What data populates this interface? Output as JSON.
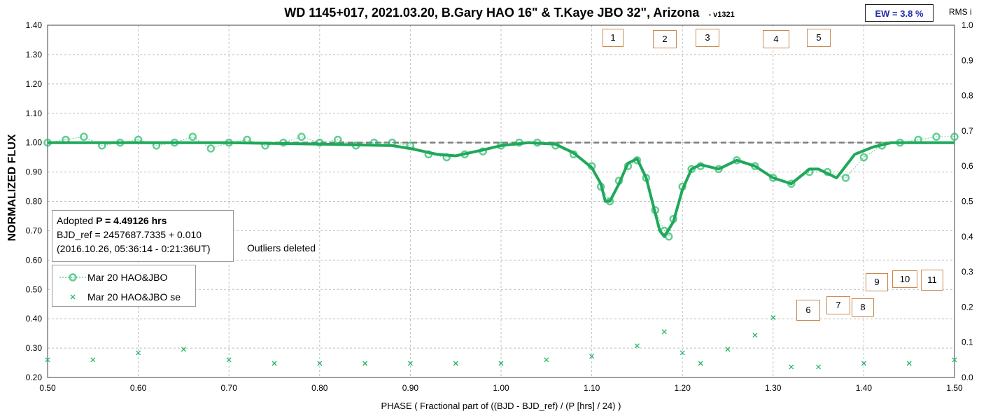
{
  "title": "WD 1145+017, 2021.03.20, B.Gary HAO 16\" & T.Kaye JBO 32\", Arizona",
  "version": "- v1321",
  "ew_label": "EW = 3.8 %",
  "rms_label": "RMS i",
  "info": {
    "line1_prefix": "Adopted ",
    "line1_bold": "P = 4.49126 hrs",
    "line2": "BJD_ref = 2457687.7335 + 0.010",
    "line3": "(2016.10.26, 05:36:14 - 0:21:36UT)"
  },
  "outliers_note": "Outliers deleted",
  "legend": [
    {
      "label": "Mar 20 HAO&JBO",
      "marker": "circle"
    },
    {
      "label": "Mar 20 HAO&JBO se",
      "marker": "x"
    }
  ],
  "markers": [
    "1",
    "2",
    "3",
    "4",
    "5",
    "6",
    "7",
    "8",
    "9",
    "10",
    "11"
  ],
  "colors": {
    "series": "#22b866",
    "fit": "#1fa85a",
    "reference": "#7f7f7f",
    "grid": "#bfbfbf",
    "ew_text": "#1f2db0",
    "marker_border": "#c98a50"
  },
  "chart_data": {
    "type": "scatter",
    "xlabel": "PHASE ( Fractional part of ((BJD - BJD_ref) / (P [hrs] / 24) )",
    "ylabel": "NORMALIZED FLUX",
    "y2label": "RMS i",
    "xlim": [
      0.5,
      1.5
    ],
    "ylim": [
      0.2,
      1.4
    ],
    "y2lim": [
      0.0,
      1.0
    ],
    "xticks": [
      "0.50",
      "0.60",
      "0.70",
      "0.80",
      "0.90",
      "1.00",
      "1.10",
      "1.20",
      "1.30",
      "1.40",
      "1.50"
    ],
    "yticks": [
      "0.20",
      "0.30",
      "0.40",
      "0.50",
      "0.60",
      "0.70",
      "0.80",
      "0.90",
      "1.00",
      "1.10",
      "1.20",
      "1.30",
      "1.40"
    ],
    "y2ticks": [
      "0.0",
      "0.1",
      "0.2",
      "0.3",
      "0.4",
      "0.5",
      "0.6",
      "0.7",
      "0.8",
      "0.9",
      "1.0"
    ],
    "grid": true,
    "reference_line": 1.0,
    "fit_curve": {
      "x": [
        0.5,
        0.6,
        0.7,
        0.8,
        0.88,
        0.9,
        0.93,
        0.95,
        0.98,
        1.0,
        1.03,
        1.06,
        1.08,
        1.1,
        1.11,
        1.115,
        1.12,
        1.13,
        1.14,
        1.15,
        1.16,
        1.17,
        1.175,
        1.18,
        1.19,
        1.2,
        1.21,
        1.22,
        1.24,
        1.26,
        1.28,
        1.3,
        1.32,
        1.34,
        1.35,
        1.37,
        1.39,
        1.41,
        1.43,
        1.45,
        1.5
      ],
      "y": [
        1.0,
        1.0,
        1.0,
        0.995,
        0.99,
        0.98,
        0.96,
        0.955,
        0.975,
        0.99,
        1.0,
        0.995,
        0.965,
        0.915,
        0.86,
        0.8,
        0.8,
        0.86,
        0.93,
        0.945,
        0.88,
        0.76,
        0.7,
        0.68,
        0.73,
        0.84,
        0.91,
        0.925,
        0.91,
        0.94,
        0.92,
        0.88,
        0.86,
        0.91,
        0.91,
        0.88,
        0.96,
        0.985,
        1.0,
        1.0,
        1.0
      ]
    },
    "series": [
      {
        "name": "Mar 20 HAO&JBO",
        "marker": "circle",
        "x": [
          0.5,
          0.52,
          0.54,
          0.56,
          0.58,
          0.6,
          0.62,
          0.64,
          0.66,
          0.68,
          0.7,
          0.72,
          0.74,
          0.76,
          0.78,
          0.8,
          0.82,
          0.84,
          0.86,
          0.88,
          0.9,
          0.92,
          0.94,
          0.96,
          0.98,
          1.0,
          1.02,
          1.04,
          1.06,
          1.08,
          1.1,
          1.11,
          1.12,
          1.13,
          1.14,
          1.15,
          1.16,
          1.17,
          1.18,
          1.185,
          1.19,
          1.2,
          1.21,
          1.22,
          1.24,
          1.26,
          1.28,
          1.3,
          1.32,
          1.34,
          1.36,
          1.38,
          1.4,
          1.42,
          1.44,
          1.46,
          1.48,
          1.5
        ],
        "y": [
          1.0,
          1.01,
          1.02,
          0.99,
          1.0,
          1.01,
          0.99,
          1.0,
          1.02,
          0.98,
          1.0,
          1.01,
          0.99,
          1.0,
          1.02,
          1.0,
          1.01,
          0.99,
          1.0,
          1.0,
          0.99,
          0.96,
          0.95,
          0.96,
          0.97,
          0.99,
          1.0,
          1.0,
          0.99,
          0.96,
          0.92,
          0.85,
          0.8,
          0.87,
          0.92,
          0.94,
          0.88,
          0.77,
          0.7,
          0.68,
          0.74,
          0.85,
          0.91,
          0.92,
          0.91,
          0.94,
          0.92,
          0.88,
          0.86,
          0.9,
          0.9,
          0.88,
          0.95,
          0.99,
          1.0,
          1.01,
          1.02,
          1.02
        ]
      },
      {
        "name": "Mar 20 HAO&JBO se",
        "marker": "x",
        "x": [
          0.5,
          0.55,
          0.6,
          0.65,
          0.7,
          0.75,
          0.8,
          0.85,
          0.9,
          0.95,
          1.0,
          1.05,
          1.1,
          1.15,
          1.18,
          1.2,
          1.22,
          1.25,
          1.28,
          1.3,
          1.32,
          1.35,
          1.4,
          1.45,
          1.5
        ],
        "y2": [
          0.05,
          0.05,
          0.07,
          0.08,
          0.05,
          0.04,
          0.04,
          0.04,
          0.04,
          0.04,
          0.04,
          0.05,
          0.06,
          0.09,
          0.13,
          0.07,
          0.04,
          0.08,
          0.12,
          0.17,
          0.03,
          0.03,
          0.04,
          0.04,
          0.05
        ]
      }
    ]
  }
}
